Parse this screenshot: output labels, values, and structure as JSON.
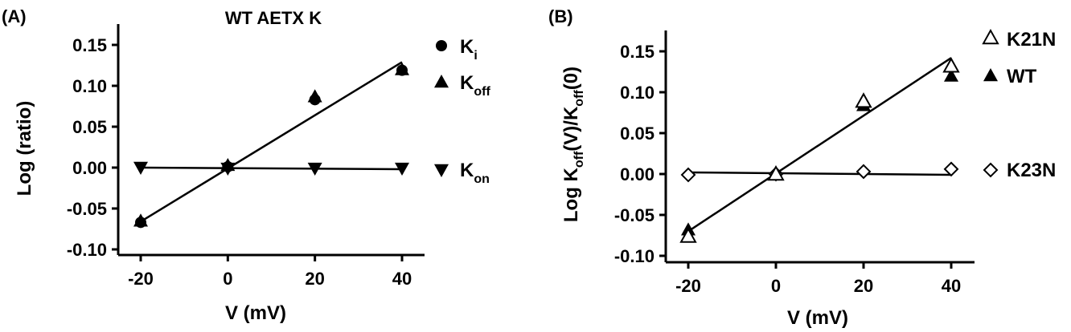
{
  "chart_data": [
    {
      "type": "scatter",
      "panel_label": "(A)",
      "title": "WT AETX K",
      "xlabel": "V (mV)",
      "ylabel": "Log (ratio)",
      "xlim": [
        -25,
        45
      ],
      "ylim": [
        -0.1,
        0.175
      ],
      "xticks": [
        -20,
        0,
        20,
        40
      ],
      "xtick_labels": [
        "-20",
        "0",
        "20",
        "40"
      ],
      "yticks": [
        -0.1,
        -0.05,
        0.0,
        0.05,
        0.1,
        0.15
      ],
      "ytick_labels": [
        "-0.10",
        "-0.05",
        "0.00",
        "0.05",
        "0.10",
        "0.15"
      ],
      "grid": false,
      "legend_position": "right",
      "series": [
        {
          "name": "Ki",
          "label_main": "K",
          "label_sub": "i",
          "marker": "circle",
          "x": [
            -20,
            0,
            20,
            40
          ],
          "y": [
            -0.067,
            0.001,
            0.083,
            0.119
          ]
        },
        {
          "name": "Koff",
          "label_main": "K",
          "label_sub": "off",
          "marker": "triangle-up",
          "x": [
            -20,
            0,
            20,
            40
          ],
          "y": [
            -0.065,
            0.003,
            0.087,
            0.12
          ]
        },
        {
          "name": "Kon",
          "label_main": "K",
          "label_sub": "on",
          "marker": "triangle-down",
          "x": [
            -20,
            0,
            20,
            40
          ],
          "y": [
            0.0,
            -0.001,
            -0.001,
            -0.001
          ]
        }
      ],
      "fit_lines": [
        {
          "x": [
            -20,
            40
          ],
          "y": [
            -0.066,
            0.129
          ]
        },
        {
          "x": [
            -20,
            40
          ],
          "y": [
            0.0,
            -0.002
          ]
        }
      ]
    },
    {
      "type": "scatter",
      "panel_label": "(B)",
      "title": "",
      "xlabel": "V (mV)",
      "ylabel_parts": [
        "Log K",
        "off",
        "(V)/K",
        "off",
        "(0)"
      ],
      "xlim": [
        -25,
        50
      ],
      "ylim": [
        -0.1,
        0.175
      ],
      "xticks": [
        -20,
        0,
        20,
        40
      ],
      "xtick_labels": [
        "-20",
        "0",
        "20",
        "40"
      ],
      "yticks": [
        -0.1,
        -0.05,
        0.0,
        0.05,
        0.1,
        0.15
      ],
      "ytick_labels": [
        "-0.10",
        "-0.05",
        "0.00",
        "0.05",
        "0.10",
        "0.15"
      ],
      "grid": false,
      "legend_position": "right",
      "series": [
        {
          "name": "K21N",
          "marker": "triangle-up-open",
          "x": [
            -20,
            0,
            20,
            40
          ],
          "y": [
            -0.076,
            0.0,
            0.089,
            0.132
          ]
        },
        {
          "name": "WT",
          "marker": "triangle-up",
          "x": [
            -20,
            0,
            20,
            40
          ],
          "y": [
            -0.068,
            0.0,
            0.084,
            0.12
          ]
        },
        {
          "name": "K23N",
          "marker": "diamond-open",
          "x": [
            -20,
            0,
            20,
            40
          ],
          "y": [
            -0.001,
            0.0,
            0.003,
            0.006
          ]
        }
      ],
      "fit_lines": [
        {
          "x": [
            -20,
            40
          ],
          "y": [
            -0.07,
            0.142
          ]
        },
        {
          "x": [
            -20,
            40
          ],
          "y": [
            0.002,
            -0.001
          ]
        }
      ]
    }
  ]
}
